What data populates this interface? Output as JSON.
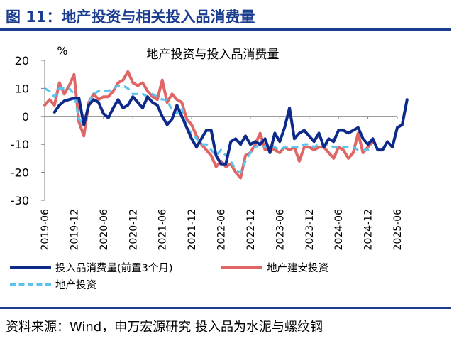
{
  "figure": {
    "title": "图 11：地产投资与相关投入品消费量",
    "source": "资料来源：Wind，申万宏源研究 投入品为水泥与螺纹钢"
  },
  "chart_data": {
    "type": "line",
    "title": "地产投资与投入品消费量",
    "ylabel": "%",
    "ylim": [
      -30,
      20
    ],
    "yticks": [
      20,
      10,
      0,
      -10,
      -20,
      -30
    ],
    "grid": false,
    "legend_position": "bottom",
    "x_tick_labels": [
      "2019-06",
      "2019-12",
      "2020-06",
      "2020-12",
      "2021-06",
      "2021-12",
      "2022-06",
      "2022-12",
      "2023-06",
      "2023-12",
      "2024-06",
      "2024-12",
      "2025-06"
    ],
    "series": [
      {
        "name": "投入品消费量(前置3个月)",
        "color": "#0d2a8a",
        "style": "solid",
        "start": "2019-08",
        "values": [
          1.5,
          4,
          5.5,
          6,
          6.5,
          6.5,
          -3,
          4,
          6,
          5,
          1,
          -0.5,
          3,
          6,
          3,
          4,
          7,
          5,
          3,
          7,
          5,
          4,
          0,
          -3,
          -1,
          4,
          0,
          -4,
          -8,
          -11,
          -8,
          -5,
          -5,
          -14,
          -17,
          -17,
          -9,
          -8,
          -10,
          -7,
          -10,
          -9,
          -10,
          -8,
          -13,
          -6,
          -9,
          -4,
          3,
          -8,
          -6,
          -5,
          -7,
          -9,
          -6,
          -11,
          -8,
          -9,
          -5,
          -5,
          -6,
          -5,
          -4,
          -8,
          -10,
          -8,
          -12,
          -12,
          -9,
          -11,
          -4,
          -3,
          6
        ]
      },
      {
        "name": "地产建安投资",
        "color": "#e06666",
        "style": "solid",
        "start": "2019-06",
        "values": [
          4,
          6,
          4,
          12,
          8,
          11,
          15,
          -2,
          -7,
          5,
          8,
          6,
          7,
          7,
          9,
          12,
          13,
          16,
          12,
          11,
          12,
          9,
          7,
          6,
          13,
          5,
          8,
          6,
          5,
          -1,
          -3,
          -7,
          -10,
          -12,
          -14,
          -18,
          -16,
          -18,
          -17,
          -20,
          -22,
          -14,
          -13,
          -10,
          -6,
          -12,
          -11,
          -12,
          -13,
          -11,
          -12,
          -11,
          -16,
          -11,
          -11,
          -12,
          -11,
          -11,
          -13,
          -15,
          -11,
          -12,
          -15,
          -13,
          -6,
          -13,
          -11,
          -9
        ]
      },
      {
        "name": "地产投资",
        "color": "#5bc3ec",
        "style": "dashed",
        "start": "2019-06",
        "values": [
          10,
          9,
          7,
          10,
          10,
          10,
          8,
          -1,
          -3,
          5,
          8,
          9,
          9,
          9,
          10,
          11,
          11,
          10,
          8,
          8,
          8,
          7,
          8,
          7,
          6,
          6,
          2,
          1,
          3,
          -4,
          -6,
          -8,
          -10,
          -10,
          -12,
          -14,
          -12,
          -14,
          -16,
          -19,
          -20,
          -16,
          -13,
          -11,
          -10,
          -11,
          -10,
          -11,
          -12,
          -11,
          -11,
          -11,
          -11,
          -10,
          -10,
          -11,
          -10,
          -10,
          -10,
          -11,
          -11,
          -11,
          -11,
          -11,
          -12,
          -12,
          -12,
          -11
        ]
      }
    ]
  }
}
